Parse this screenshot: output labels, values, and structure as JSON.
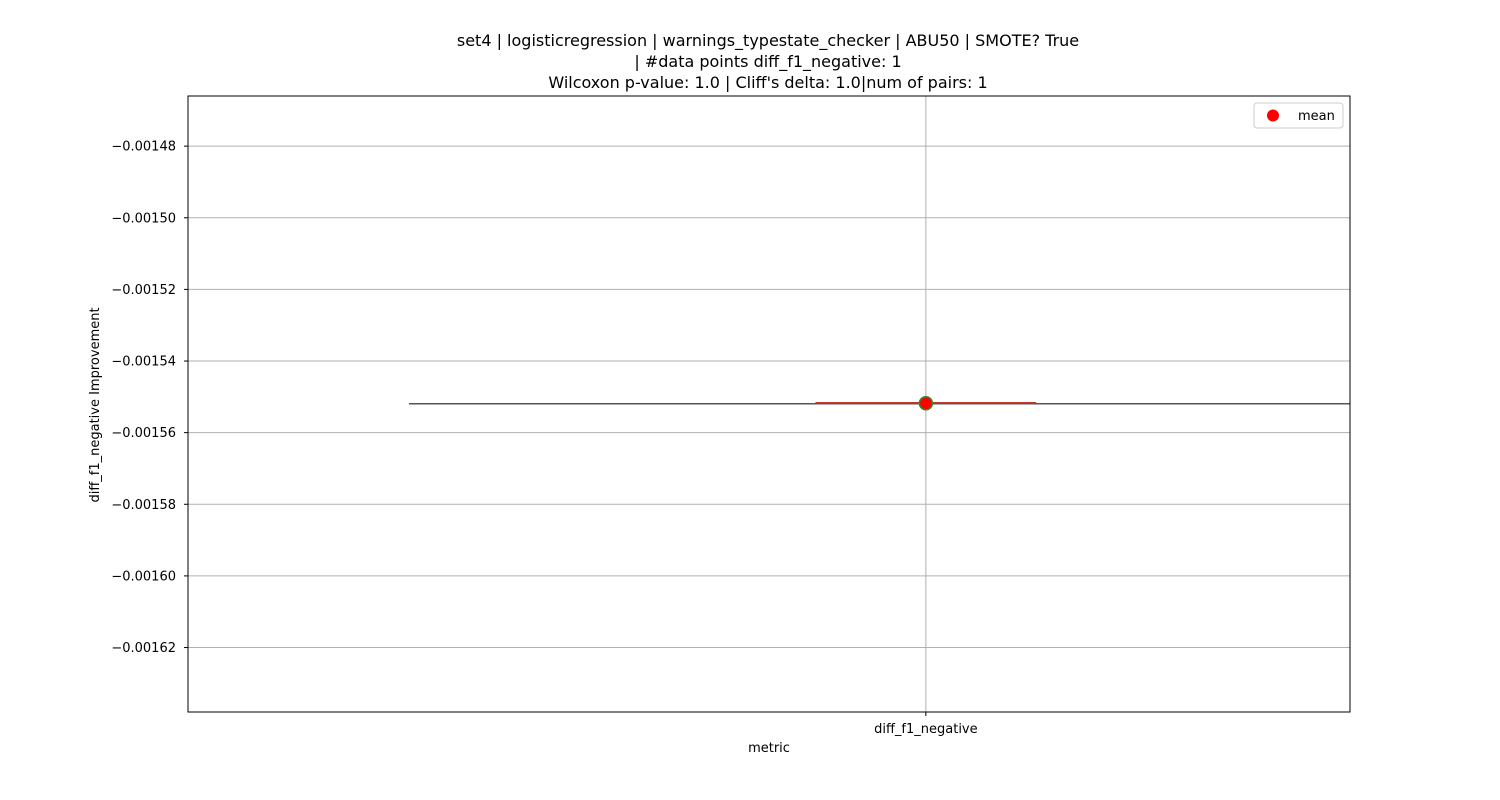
{
  "chart_data": {
    "type": "box",
    "title_lines": [
      "set4 | logisticregression | warnings_typestate_checker | ABU50 | SMOTE? True",
      "| #data points diff_f1_negative: 1",
      "Wilcoxon p-value: 1.0 | Cliff's delta: 1.0|num of pairs: 1"
    ],
    "xlabel": "metric",
    "ylabel": "diff_f1_negative Improvement",
    "categories": [
      "diff_f1_negative"
    ],
    "ylim": [
      -0.001638,
      -0.001466
    ],
    "yticks": [
      -0.00148,
      -0.0015,
      -0.00152,
      -0.00154,
      -0.00156,
      -0.00158,
      -0.0016,
      -0.00162
    ],
    "ytick_labels": [
      "−0.00148",
      "−0.00150",
      "−0.00152",
      "−0.00154",
      "−0.00156",
      "−0.00158",
      "−0.00160",
      "−0.00162"
    ],
    "grid": true,
    "series": [
      {
        "name": "diff_f1_negative",
        "values": [
          -0.0015518
        ],
        "median": -0.0015518,
        "mean": -0.0015518,
        "q1": -0.0015518,
        "q3": -0.0015518,
        "whisker_low": -0.0015518,
        "whisker_high": -0.0015518
      }
    ],
    "legend": {
      "position": "top-right",
      "entries": [
        {
          "label": "mean",
          "marker": "circle",
          "color": "#ff0000"
        }
      ]
    },
    "colors": {
      "mean_marker": "#ff0000",
      "mean_edge": "#2e8b2e",
      "median_line": "#c0392b",
      "box_edge": "#555555",
      "grid": "#b0b0b0",
      "axes": "#000000"
    }
  }
}
